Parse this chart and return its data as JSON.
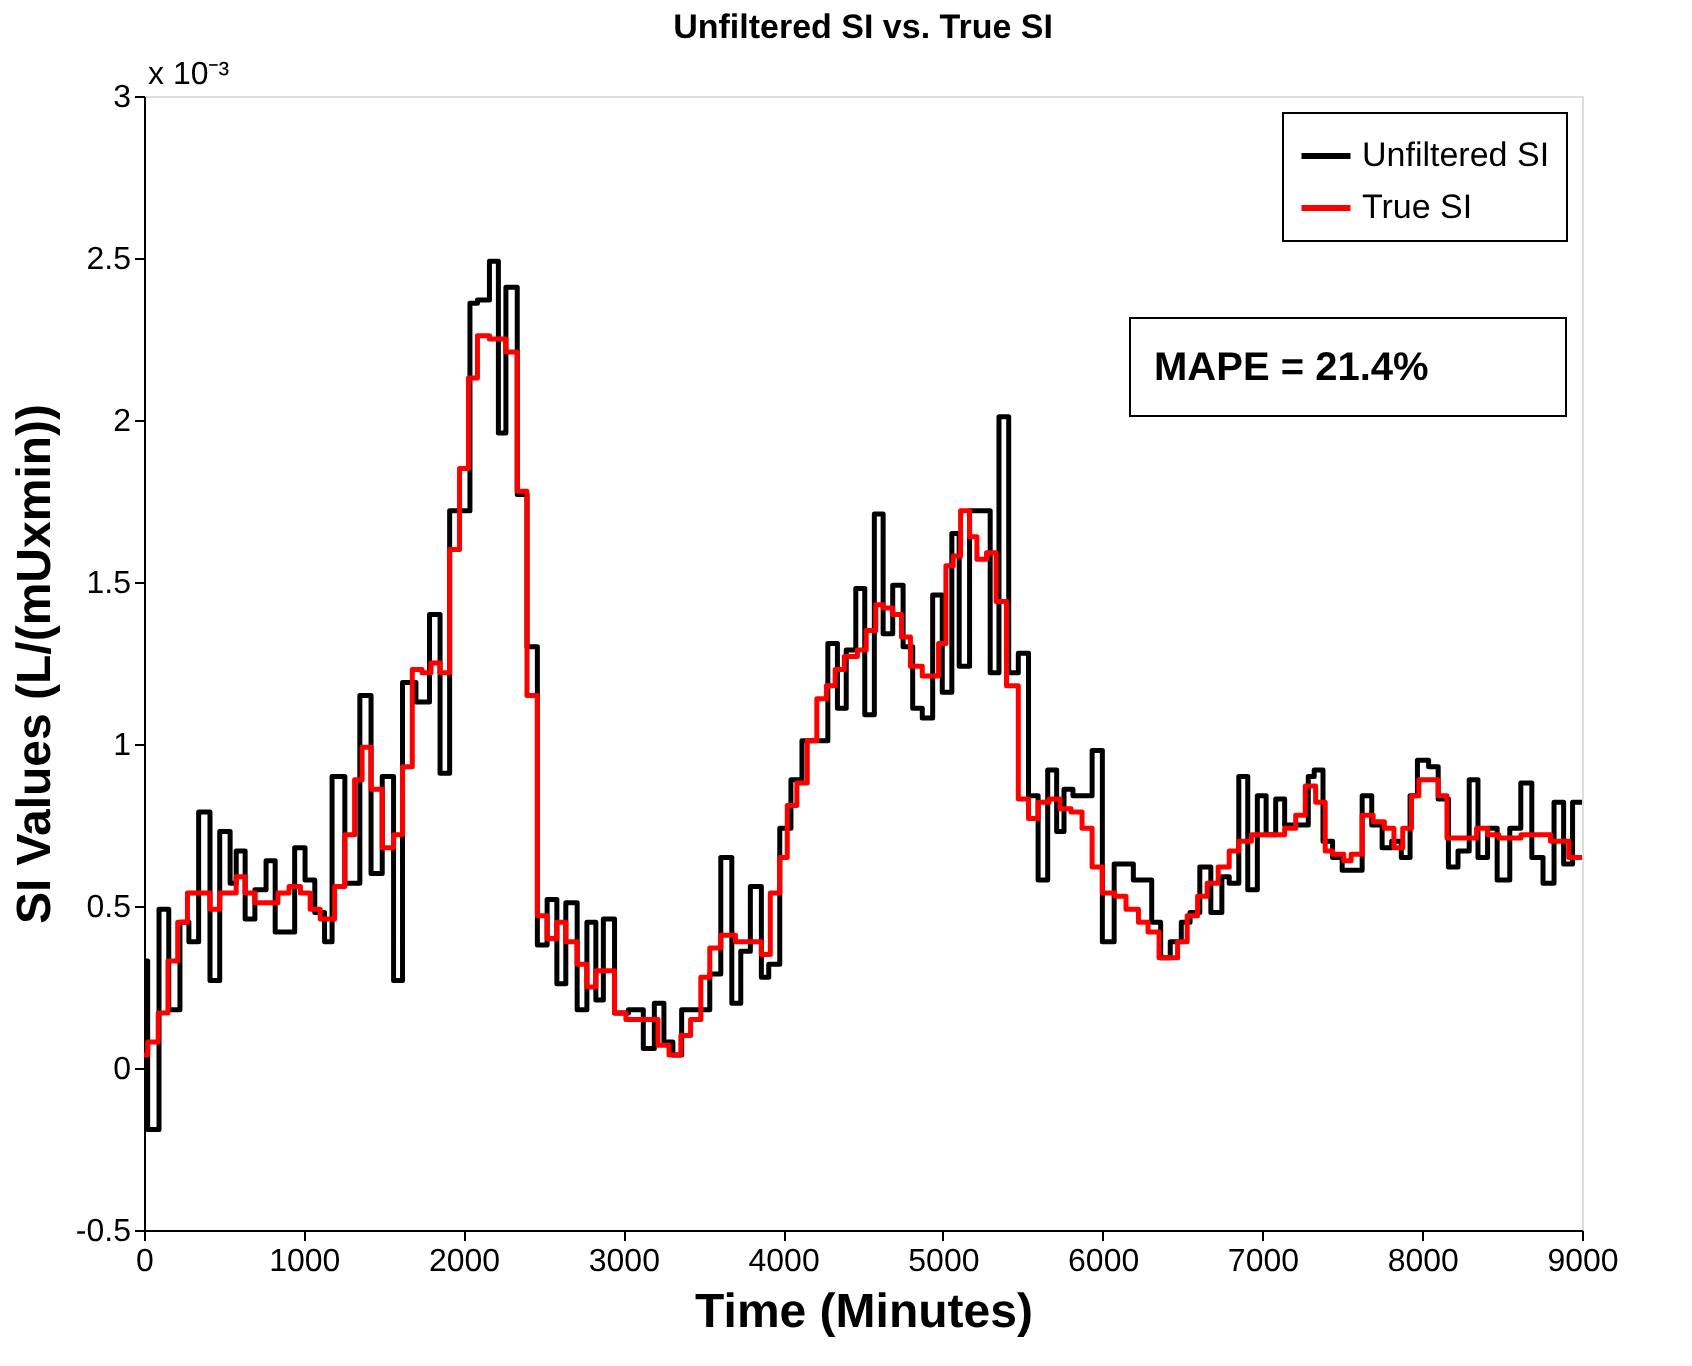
{
  "chart_data": {
    "type": "step",
    "title": "Unfiltered SI vs. True SI",
    "xlabel": "Time (Minutes)",
    "ylabel": "SI Values (L/(mUxmin))",
    "xlim": [
      0,
      9000
    ],
    "xticks": [
      0,
      1000,
      2000,
      3000,
      4000,
      5000,
      6000,
      7000,
      8000,
      9000
    ],
    "ylim": [
      -0.5,
      3
    ],
    "yticks": [
      -0.5,
      0,
      0.5,
      1,
      1.5,
      2,
      2.5,
      3
    ],
    "grid": false,
    "legend": "top right",
    "annotations": [
      "x 10⁻³",
      "MAPE = 21.4%"
    ],
    "series": [
      {
        "name": "Unfiltered SI",
        "color": "#000000",
        "x": [
          0,
          23,
          94,
          155,
          225,
          281,
          342,
          413,
          474,
          539,
          577,
          633,
          694,
          764,
          821,
          943,
          1008,
          1069,
          1130,
          1177,
          1257,
          1351,
          1421,
          1491,
          1562,
          1618,
          1702,
          1787,
          1853,
          1913,
          2040,
          2087,
          2162,
          2218,
          2265,
          2336,
          2397,
          2462,
          2523,
          2584,
          2640,
          2711,
          2772,
          2828,
          2875,
          2945,
          3032,
          3125,
          3194,
          3254,
          3310,
          3365,
          3541,
          3610,
          3679,
          3735,
          3795,
          3864,
          3910,
          3979,
          4049,
          4118,
          4280,
          4340,
          4395,
          4455,
          4511,
          4571,
          4626,
          4686,
          4751,
          4811,
          4871,
          4936,
          4996,
          5056,
          5102,
          5167,
          5296,
          5351,
          5412,
          5472,
          5536,
          5596,
          5656,
          5712,
          5758,
          5814,
          5934,
          5998,
          6072,
          6192,
          6307,
          6363,
          6423,
          6492,
          6547,
          6608,
          6677,
          6746,
          6792,
          6852,
          6908,
          6968,
          7023,
          7083,
          7139,
          7287,
          7324,
          7379,
          7439,
          7499,
          7624,
          7684,
          7749,
          7809,
          7869,
          7924,
          7970,
          8040,
          8100,
          8164,
          8224,
          8294,
          8349,
          8409,
          8469,
          8548,
          8617,
          8686,
          8756,
          8825,
          8885,
          8941,
          9000
        ],
        "values": [
          0.33,
          -0.19,
          0.49,
          0.18,
          0.45,
          0.39,
          0.79,
          0.27,
          0.73,
          0.57,
          0.67,
          0.46,
          0.55,
          0.64,
          0.42,
          0.68,
          0.58,
          0.48,
          0.39,
          0.9,
          0.57,
          1.15,
          0.6,
          0.9,
          0.27,
          1.19,
          1.13,
          1.4,
          0.91,
          1.72,
          2.36,
          2.37,
          2.49,
          1.96,
          2.41,
          1.77,
          1.3,
          0.38,
          0.52,
          0.26,
          0.51,
          0.18,
          0.45,
          0.21,
          0.46,
          0.17,
          0.18,
          0.06,
          0.2,
          0.08,
          0.04,
          0.18,
          0.29,
          0.65,
          0.2,
          0.36,
          0.56,
          0.28,
          0.32,
          0.74,
          0.89,
          1.01,
          1.31,
          1.11,
          1.29,
          1.48,
          1.09,
          1.71,
          1.34,
          1.49,
          1.3,
          1.11,
          1.08,
          1.46,
          1.16,
          1.65,
          1.24,
          1.72,
          1.22,
          2.01,
          1.22,
          1.28,
          0.84,
          0.58,
          0.92,
          0.73,
          0.86,
          0.84,
          0.98,
          0.39,
          0.63,
          0.58,
          0.45,
          0.34,
          0.39,
          0.45,
          0.48,
          0.62,
          0.48,
          0.59,
          0.57,
          0.9,
          0.55,
          0.84,
          0.72,
          0.83,
          0.75,
          0.9,
          0.92,
          0.7,
          0.65,
          0.61,
          0.84,
          0.75,
          0.68,
          0.7,
          0.65,
          0.84,
          0.95,
          0.93,
          0.83,
          0.62,
          0.67,
          0.89,
          0.65,
          0.74,
          0.58,
          0.74,
          0.88,
          0.65,
          0.57,
          0.82,
          0.63,
          0.82,
          0.82
        ]
      },
      {
        "name": "True SI",
        "color": "#ff0000",
        "x": [
          0,
          23,
          89,
          150,
          211,
          272,
          413,
          474,
          577,
          633,
          694,
          838,
          908,
          979,
          1040,
          1103,
          1193,
          1257,
          1318,
          1365,
          1421,
          1491,
          1562,
          1618,
          1679,
          1740,
          1796,
          1853,
          1913,
          1975,
          2031,
          2087,
          2162,
          2265,
          2336,
          2397,
          2462,
          2523,
          2584,
          2640,
          2711,
          2772,
          2828,
          2945,
          3016,
          3217,
          3286,
          3360,
          3421,
          3485,
          3541,
          3610,
          3702,
          3864,
          3920,
          3979,
          4026,
          4086,
          4151,
          4211,
          4271,
          4326,
          4383,
          4465,
          4520,
          4580,
          4626,
          4686,
          4741,
          4797,
          4871,
          4973,
          5019,
          5065,
          5111,
          5167,
          5213,
          5273,
          5333,
          5398,
          5472,
          5536,
          5596,
          5664,
          5733,
          5802,
          5871,
          5934,
          5998,
          6076,
          6146,
          6224,
          6284,
          6353,
          6469,
          6529,
          6594,
          6654,
          6723,
          6792,
          6852,
          6931,
          7000,
          7139,
          7208,
          7268,
          7333,
          7393,
          7439,
          7509,
          7555,
          7624,
          7693,
          7763,
          7823,
          7878,
          7933,
          7979,
          8040,
          8100,
          8155,
          8294,
          8340,
          8409,
          8479,
          8618,
          8710,
          8803,
          8917,
          9000
        ],
        "values": [
          0.04,
          0.08,
          0.17,
          0.33,
          0.45,
          0.54,
          0.49,
          0.54,
          0.59,
          0.54,
          0.51,
          0.54,
          0.56,
          0.54,
          0.49,
          0.46,
          0.56,
          0.72,
          0.89,
          0.99,
          0.86,
          0.68,
          0.72,
          0.93,
          1.23,
          1.22,
          1.25,
          1.22,
          1.6,
          1.85,
          2.13,
          2.26,
          2.25,
          2.21,
          1.78,
          1.15,
          0.47,
          0.4,
          0.45,
          0.39,
          0.32,
          0.25,
          0.3,
          0.17,
          0.15,
          0.07,
          0.04,
          0.1,
          0.15,
          0.28,
          0.37,
          0.41,
          0.39,
          0.35,
          0.54,
          0.65,
          0.81,
          0.88,
          1.01,
          1.14,
          1.18,
          1.23,
          1.27,
          1.29,
          1.35,
          1.43,
          1.42,
          1.4,
          1.33,
          1.24,
          1.21,
          1.31,
          1.55,
          1.58,
          1.72,
          1.64,
          1.57,
          1.59,
          1.44,
          1.18,
          0.83,
          0.77,
          0.82,
          0.83,
          0.8,
          0.79,
          0.74,
          0.62,
          0.54,
          0.53,
          0.49,
          0.45,
          0.42,
          0.34,
          0.39,
          0.47,
          0.53,
          0.57,
          0.62,
          0.67,
          0.7,
          0.72,
          0.72,
          0.74,
          0.78,
          0.87,
          0.82,
          0.67,
          0.66,
          0.64,
          0.66,
          0.78,
          0.76,
          0.74,
          0.68,
          0.74,
          0.84,
          0.89,
          0.89,
          0.84,
          0.71,
          0.71,
          0.74,
          0.72,
          0.71,
          0.72,
          0.72,
          0.7,
          0.65,
          0.65
        ]
      }
    ]
  }
}
